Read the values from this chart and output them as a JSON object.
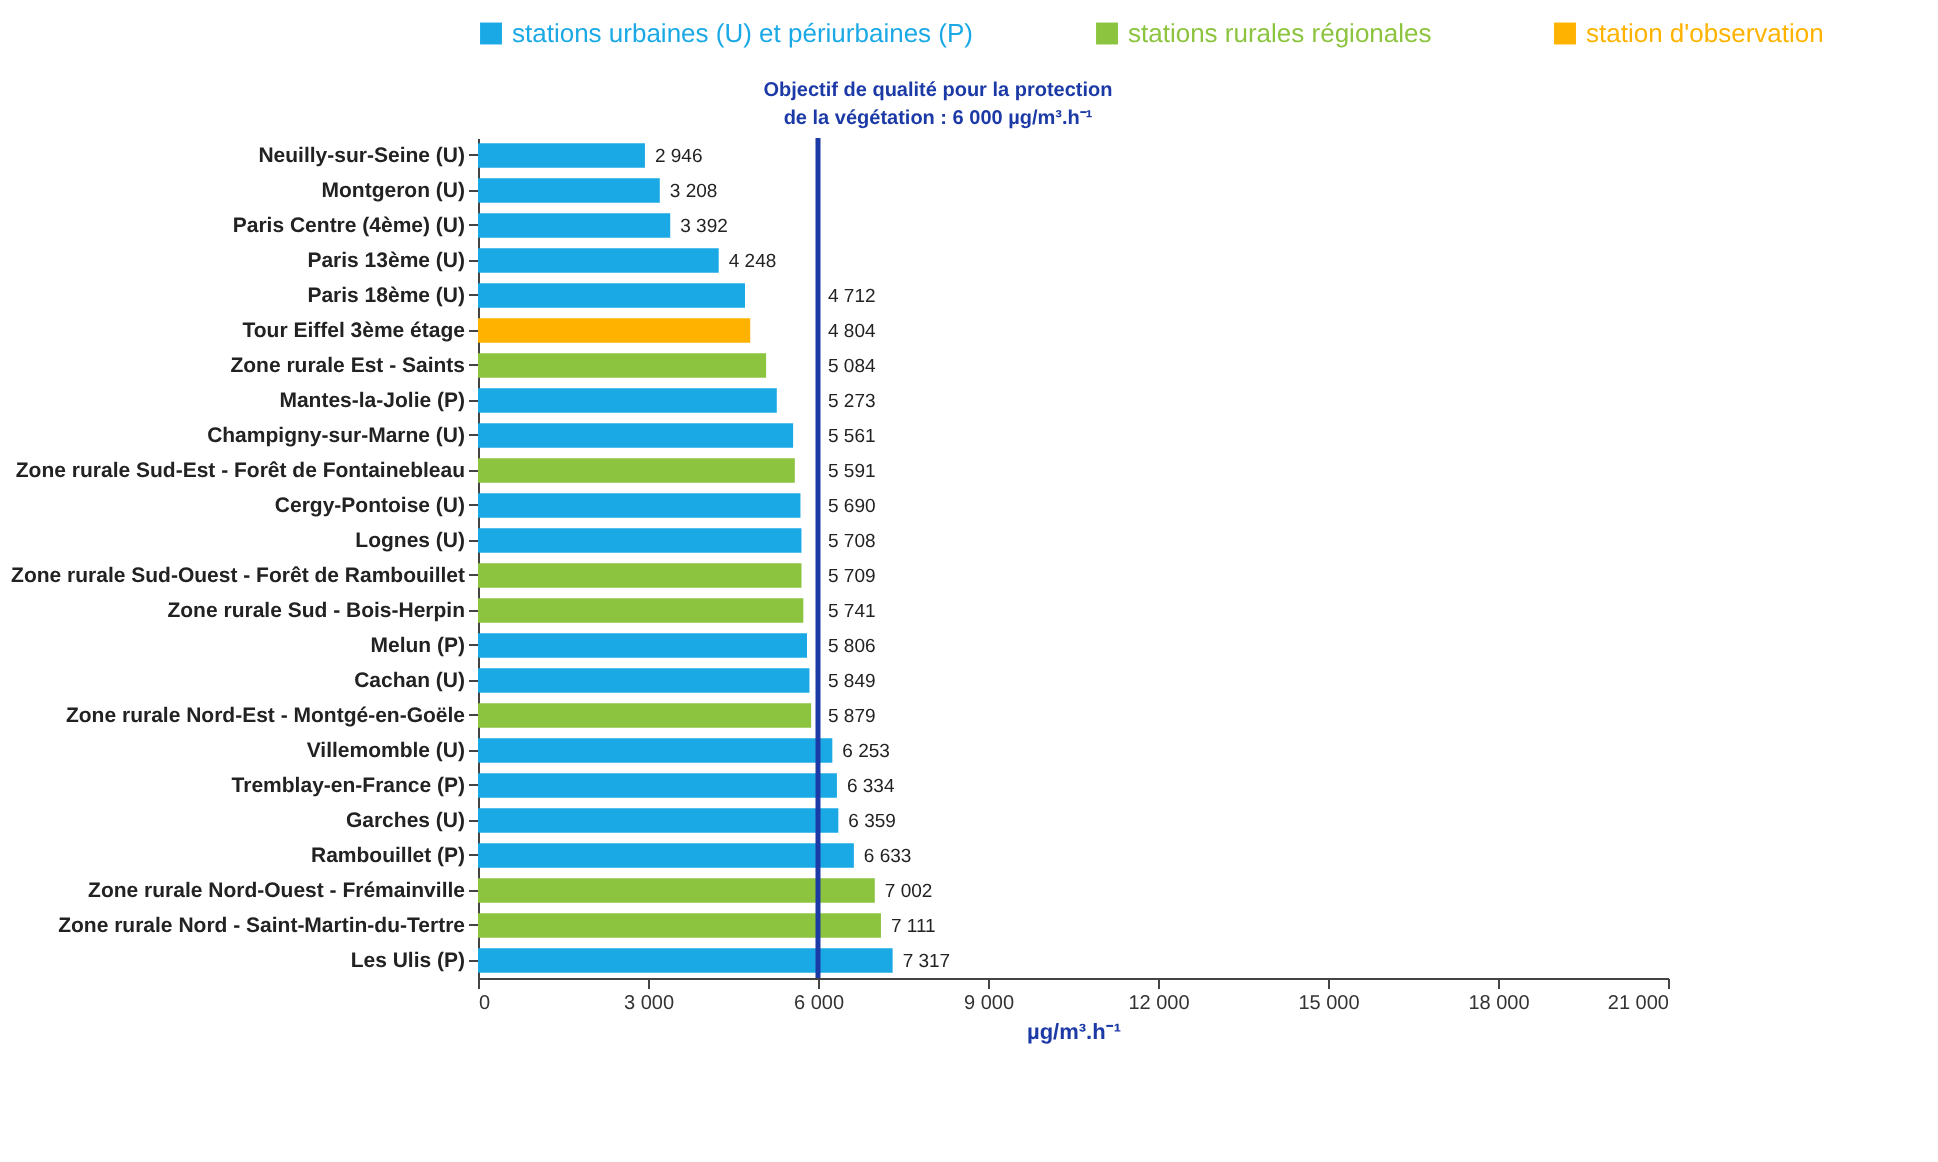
{
  "chart_data": {
    "type": "bar",
    "orientation": "horizontal",
    "xlabel": "µg/m³.h⁻¹",
    "categories": [
      "Neuilly-sur-Seine (U)",
      "Montgeron (U)",
      "Paris Centre (4ème) (U)",
      "Paris 13ème (U)",
      "Paris 18ème (U)",
      "Tour Eiffel 3ème étage",
      "Zone rurale Est - Saints",
      "Mantes-la-Jolie (P)",
      "Champigny-sur-Marne (U)",
      "Zone rurale Sud-Est - Forêt de Fontainebleau",
      "Cergy-Pontoise (U)",
      "Lognes (U)",
      "Zone rurale Sud-Ouest - Forêt de Rambouillet",
      "Zone rurale Sud - Bois-Herpin",
      "Melun (P)",
      "Cachan (U)",
      "Zone rurale Nord-Est - Montgé-en-Goële",
      "Villemomble (U)",
      "Tremblay-en-France (P)",
      "Garches (U)",
      "Rambouillet (P)",
      "Zone rurale Nord-Ouest - Frémainville",
      "Zone rurale Nord - Saint-Martin-du-Tertre",
      "Les Ulis (P)"
    ],
    "series": [
      {
        "name": "stations urbaines (U) et périurbaines (P)",
        "color": "#1ba9e6",
        "values": [
          2946,
          3208,
          3392,
          4248,
          4712,
          null,
          null,
          5273,
          5561,
          null,
          5690,
          5708,
          null,
          null,
          5806,
          5849,
          null,
          6253,
          6334,
          6359,
          6633,
          null,
          null,
          7317
        ]
      },
      {
        "name": "stations rurales régionales",
        "color": "#8cc43f",
        "values": [
          null,
          null,
          null,
          null,
          null,
          null,
          5084,
          null,
          null,
          5591,
          null,
          null,
          5709,
          5741,
          null,
          null,
          5879,
          null,
          null,
          null,
          null,
          7002,
          7111,
          null
        ]
      },
      {
        "name": "station d'observation",
        "color": "#ffb300",
        "values": [
          null,
          null,
          null,
          null,
          null,
          4804,
          null,
          null,
          null,
          null,
          null,
          null,
          null,
          null,
          null,
          null,
          null,
          null,
          null,
          null,
          null,
          null,
          null,
          null
        ]
      }
    ],
    "value_labels": [
      "2 946",
      "3 208",
      "3 392",
      "4 248",
      "4 712",
      "4 804",
      "5 084",
      "5 273",
      "5 561",
      "5 591",
      "5 690",
      "5 708",
      "5 709",
      "5 741",
      "5 806",
      "5 849",
      "5 879",
      "6 253",
      "6 334",
      "6 359",
      "6 633",
      "7 002",
      "7 111",
      "7 317"
    ],
    "xlim": [
      0,
      21000
    ],
    "xticks": [
      0,
      {
        "value": 3000,
        "label": "3 000"
      },
      {
        "value": 6000,
        "label": "6 000"
      },
      {
        "value": 9000,
        "label": "9 000"
      },
      {
        "value": 12000,
        "label": "12 000"
      },
      {
        "value": 15000,
        "label": "15 000"
      },
      {
        "value": 18000,
        "label": "18 000"
      },
      {
        "value": 21000,
        "label": "21 000"
      }
    ],
    "ref_lines": [
      {
        "axis": "x",
        "value": 6000,
        "label": "Objectif de qualité pour la protection de la végétation : 6 000 µg/m³.h⁻¹",
        "color": "#1c3aa6"
      }
    ],
    "legend": "top",
    "grid": false
  }
}
